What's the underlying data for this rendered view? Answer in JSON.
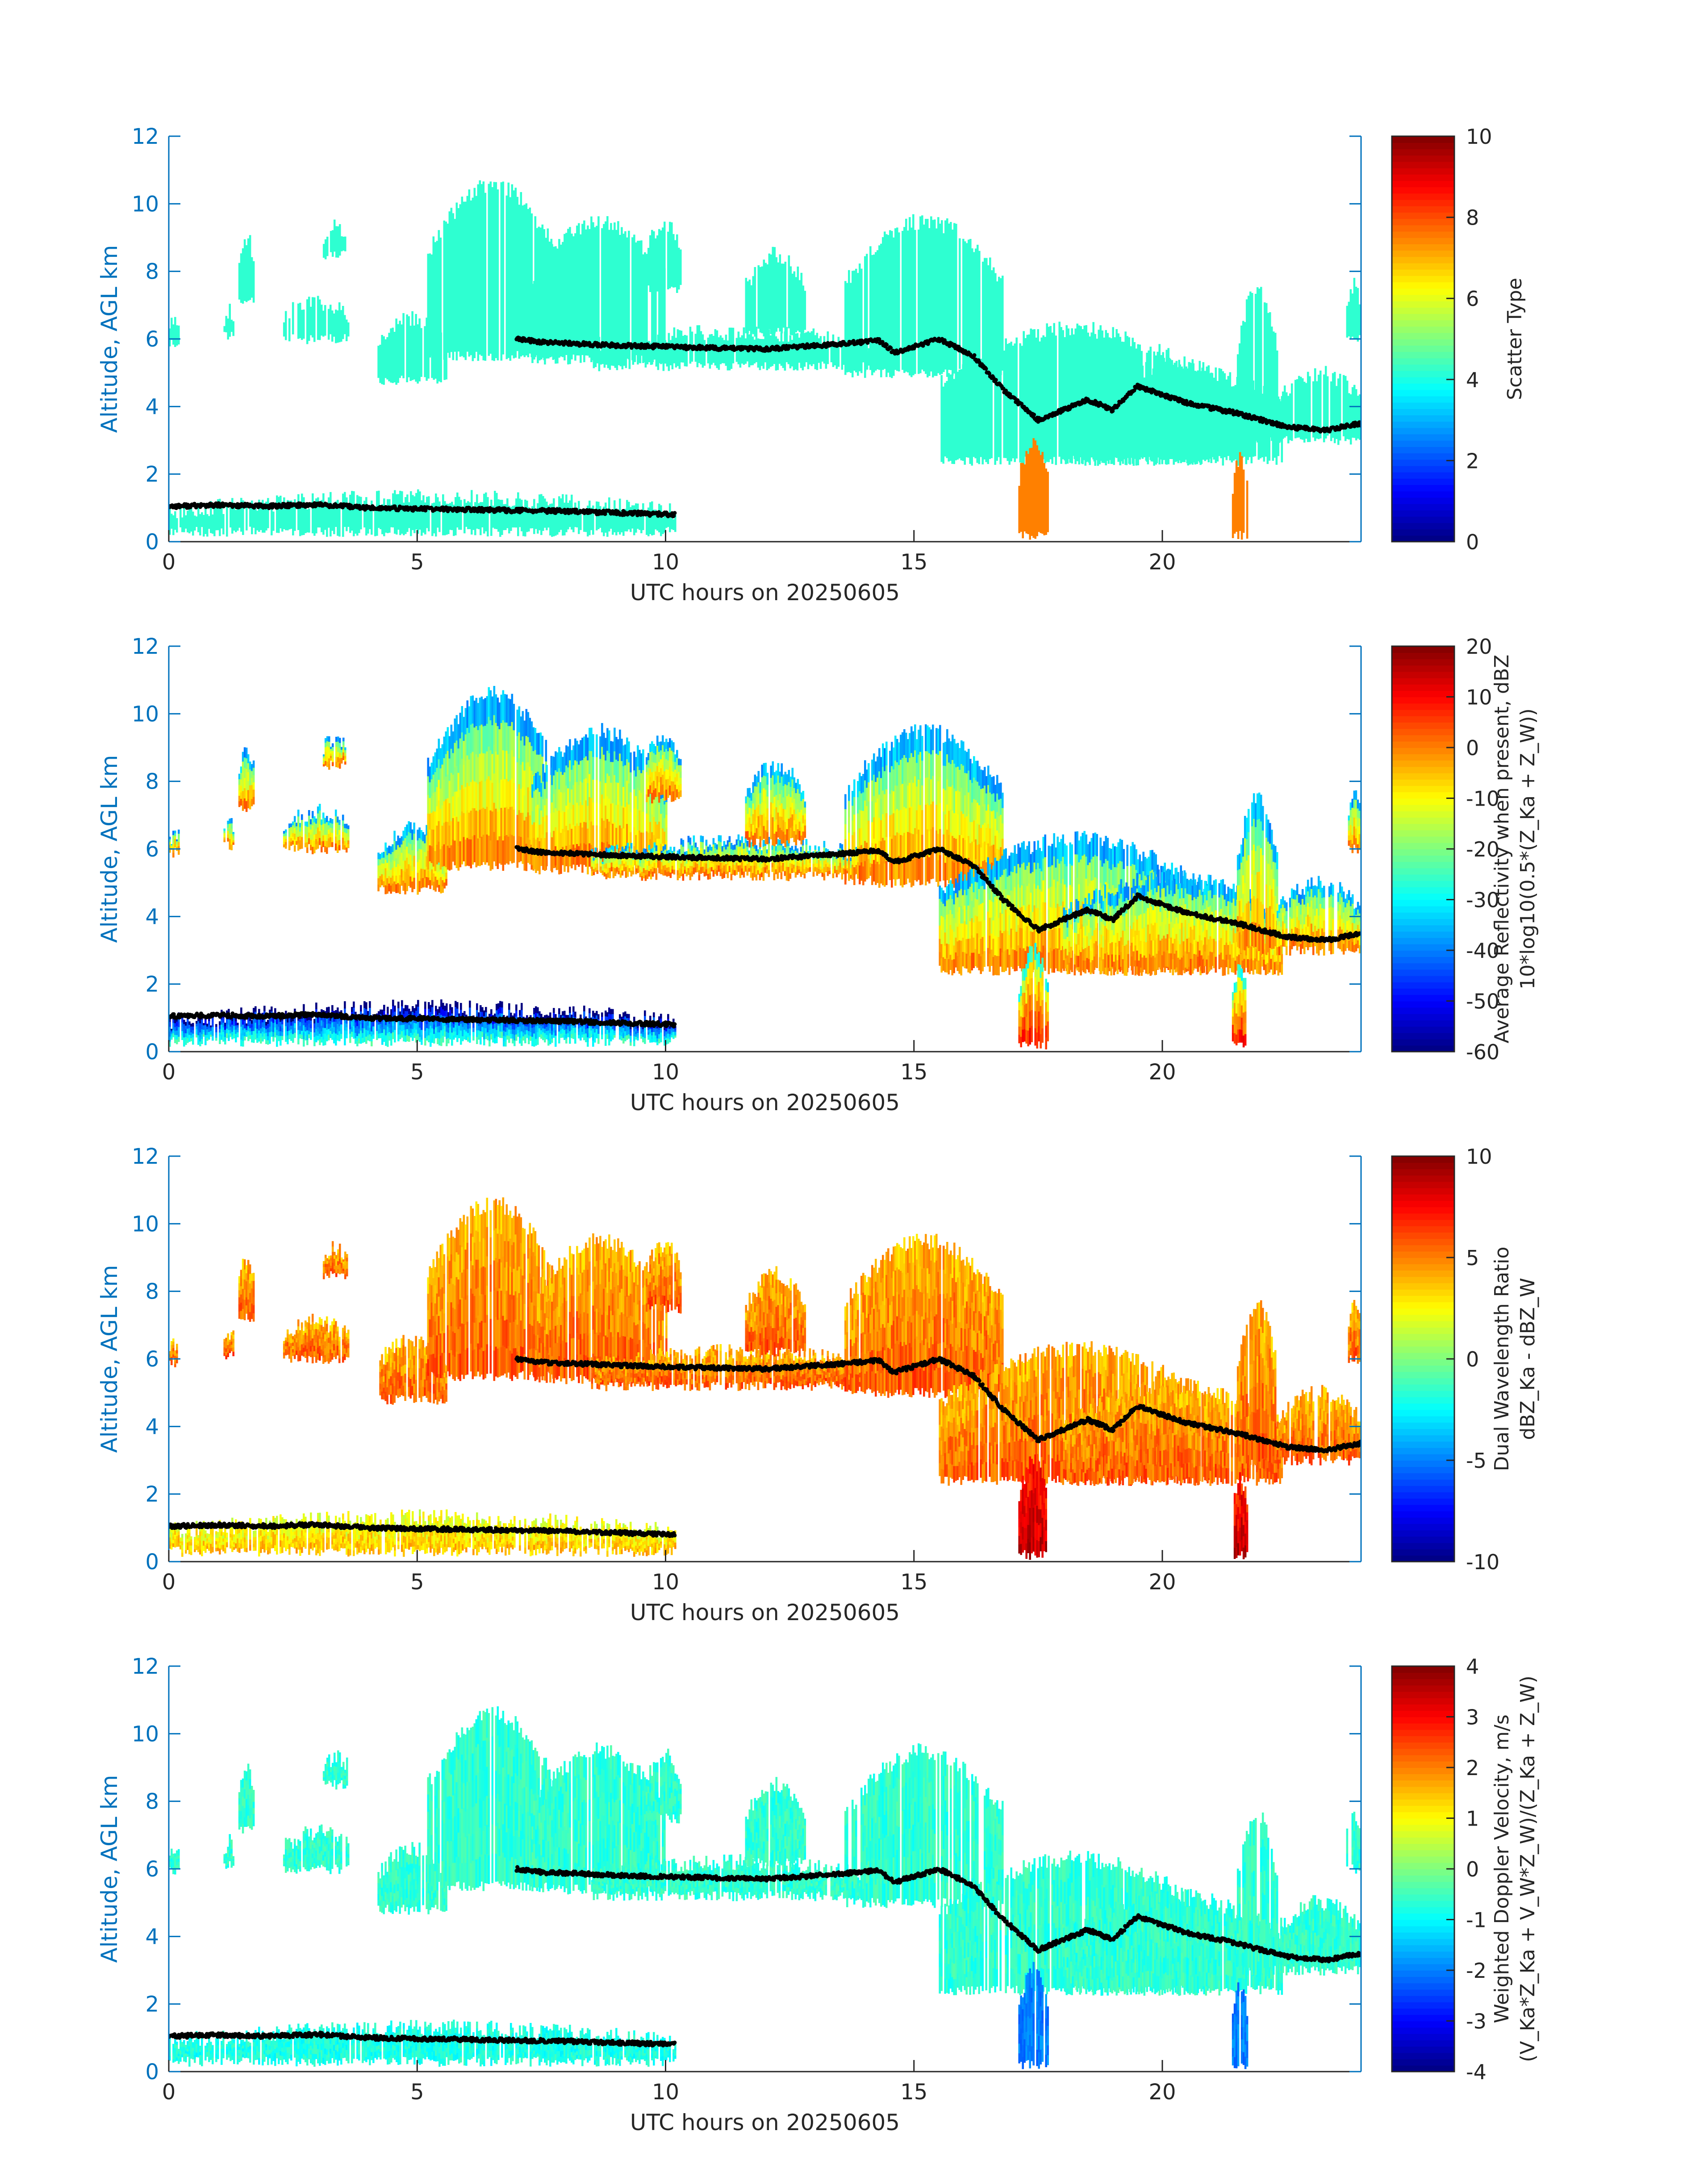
{
  "chart_data": [
    {
      "type": "heatmap",
      "xlabel": "UTC hours on 20250605",
      "ylabel": "Altitude, AGL km",
      "xlim": [
        0,
        24
      ],
      "ylim": [
        0,
        12
      ],
      "xticks": [
        "0",
        "5",
        "10",
        "15",
        "20"
      ],
      "yticks": [
        "0",
        "2",
        "4",
        "6",
        "8",
        "10",
        "12"
      ],
      "colorbar_label": [
        "Scatter Type"
      ],
      "colorbar_range": [
        0,
        10
      ],
      "colorbar_ticks": [
        "0",
        "2",
        "4",
        "6",
        "8",
        "10"
      ],
      "dominant_value": 4.2
    },
    {
      "type": "heatmap",
      "xlabel": "UTC hours on 20250605",
      "ylabel": "Altitude, AGL km",
      "xlim": [
        0,
        24
      ],
      "ylim": [
        0,
        12
      ],
      "xticks": [
        "0",
        "5",
        "10",
        "15",
        "20"
      ],
      "yticks": [
        "0",
        "2",
        "4",
        "6",
        "8",
        "10",
        "12"
      ],
      "colorbar_label": [
        "Average Reflectivity when present, dBZ",
        "10*log10(0.5*(Z_Ka + Z_W))"
      ],
      "colorbar_range": [
        -60,
        20
      ],
      "colorbar_ticks": [
        "-60",
        "-50",
        "-40",
        "-30",
        "-20",
        "-10",
        "0",
        "10",
        "20"
      ]
    },
    {
      "type": "heatmap",
      "xlabel": "UTC hours on 20250605",
      "ylabel": "Altitude, AGL km",
      "xlim": [
        0,
        24
      ],
      "ylim": [
        0,
        12
      ],
      "xticks": [
        "0",
        "5",
        "10",
        "15",
        "20"
      ],
      "yticks": [
        "0",
        "2",
        "4",
        "6",
        "8",
        "10",
        "12"
      ],
      "colorbar_label": [
        "Dual Wavelength Ratio",
        "dBZ_Ka - dBZ_W"
      ],
      "colorbar_range": [
        -10,
        10
      ],
      "colorbar_ticks": [
        "-10",
        "-5",
        "0",
        "5",
        "10"
      ]
    },
    {
      "type": "heatmap",
      "xlabel": "UTC hours on 20250605",
      "ylabel": "Altitude, AGL km",
      "xlim": [
        0,
        24
      ],
      "ylim": [
        0,
        12
      ],
      "xticks": [
        "0",
        "5",
        "10",
        "15",
        "20"
      ],
      "yticks": [
        "0",
        "2",
        "4",
        "6",
        "8",
        "10",
        "12"
      ],
      "colorbar_label": [
        "Weighted Doppler Velocity, m/s",
        "(V_Ka*Z_Ka + V_W*Z_W)/(Z_Ka + Z_W)"
      ],
      "colorbar_range": [
        -4,
        4
      ],
      "colorbar_ticks": [
        "-4",
        "-3",
        "-2",
        "-1",
        "0",
        "1",
        "2",
        "3",
        "4"
      ]
    }
  ],
  "cloud_regions": [
    {
      "t0": 0.0,
      "t1": 10.2,
      "lo": 0.3,
      "hi": 1.3,
      "kind": "low"
    },
    {
      "t0": 0.0,
      "t1": 0.2,
      "lo": 5.9,
      "hi": 6.5,
      "kind": "ice"
    },
    {
      "t0": 1.1,
      "t1": 1.3,
      "lo": 6.1,
      "hi": 6.8,
      "kind": "ice"
    },
    {
      "t0": 1.4,
      "t1": 1.7,
      "lo": 7.2,
      "hi": 9.0,
      "kind": "ice"
    },
    {
      "t0": 2.3,
      "t1": 3.6,
      "lo": 6.0,
      "hi": 7.1,
      "kind": "ice"
    },
    {
      "t0": 3.1,
      "t1": 3.6,
      "lo": 8.5,
      "hi": 9.3,
      "kind": "ice"
    },
    {
      "t0": 4.2,
      "t1": 5.6,
      "lo": 4.8,
      "hi": 6.6,
      "kind": "ice"
    },
    {
      "t0": 5.2,
      "t1": 7.8,
      "lo": 5.5,
      "hi": 10.6,
      "kind": "ice"
    },
    {
      "t0": 7.3,
      "t1": 10.0,
      "lo": 5.4,
      "hi": 9.5,
      "kind": "ice"
    },
    {
      "t0": 8.5,
      "t1": 14.3,
      "lo": 5.2,
      "hi": 6.2,
      "kind": "ice"
    },
    {
      "t0": 9.6,
      "t1": 10.3,
      "lo": 7.5,
      "hi": 9.4,
      "kind": "ice"
    },
    {
      "t0": 11.6,
      "t1": 12.8,
      "lo": 6.2,
      "hi": 8.5,
      "kind": "ice"
    },
    {
      "t0": 13.6,
      "t1": 16.8,
      "lo": 5.0,
      "hi": 9.5,
      "kind": "ice"
    },
    {
      "t0": 15.5,
      "t1": 21.0,
      "lo": 2.4,
      "hi": 6.3,
      "kind": "ice"
    },
    {
      "t0": 17.1,
      "t1": 17.7,
      "lo": 0.2,
      "hi": 3.0,
      "kind": "fall"
    },
    {
      "t0": 18.0,
      "t1": 22.4,
      "lo": 2.4,
      "hi": 5.2,
      "kind": "ice"
    },
    {
      "t0": 21.5,
      "t1": 22.3,
      "lo": 3.0,
      "hi": 7.6,
      "kind": "ice"
    },
    {
      "t0": 21.4,
      "t1": 21.7,
      "lo": 0.2,
      "hi": 2.5,
      "kind": "fall"
    },
    {
      "t0": 22.3,
      "t1": 24.0,
      "lo": 3.0,
      "hi": 5.0,
      "kind": "ice"
    },
    {
      "t0": 23.7,
      "t1": 24.0,
      "lo": 6.0,
      "hi": 7.6,
      "kind": "ice"
    }
  ],
  "cloud_top_track": [
    [
      0.0,
      1.05
    ],
    [
      1.0,
      1.08
    ],
    [
      2.0,
      1.05
    ],
    [
      3.0,
      1.1
    ],
    [
      4.0,
      1.0
    ],
    [
      6.0,
      0.95
    ],
    [
      8.0,
      0.9
    ],
    [
      10.2,
      0.8
    ],
    [
      7.0,
      6.0
    ],
    [
      7.5,
      5.9
    ],
    [
      9.2,
      5.8
    ],
    [
      10.5,
      5.75
    ],
    [
      12.0,
      5.7
    ],
    [
      13.5,
      5.85
    ],
    [
      14.3,
      5.95
    ],
    [
      14.6,
      5.6
    ],
    [
      15.5,
      6.0
    ],
    [
      16.2,
      5.5
    ],
    [
      16.8,
      4.5
    ],
    [
      17.5,
      3.6
    ],
    [
      18.5,
      4.2
    ],
    [
      19.0,
      3.9
    ],
    [
      19.5,
      4.6
    ],
    [
      20.5,
      4.1
    ],
    [
      21.5,
      3.8
    ],
    [
      22.5,
      3.4
    ],
    [
      23.3,
      3.3
    ],
    [
      24.0,
      3.5
    ]
  ]
}
